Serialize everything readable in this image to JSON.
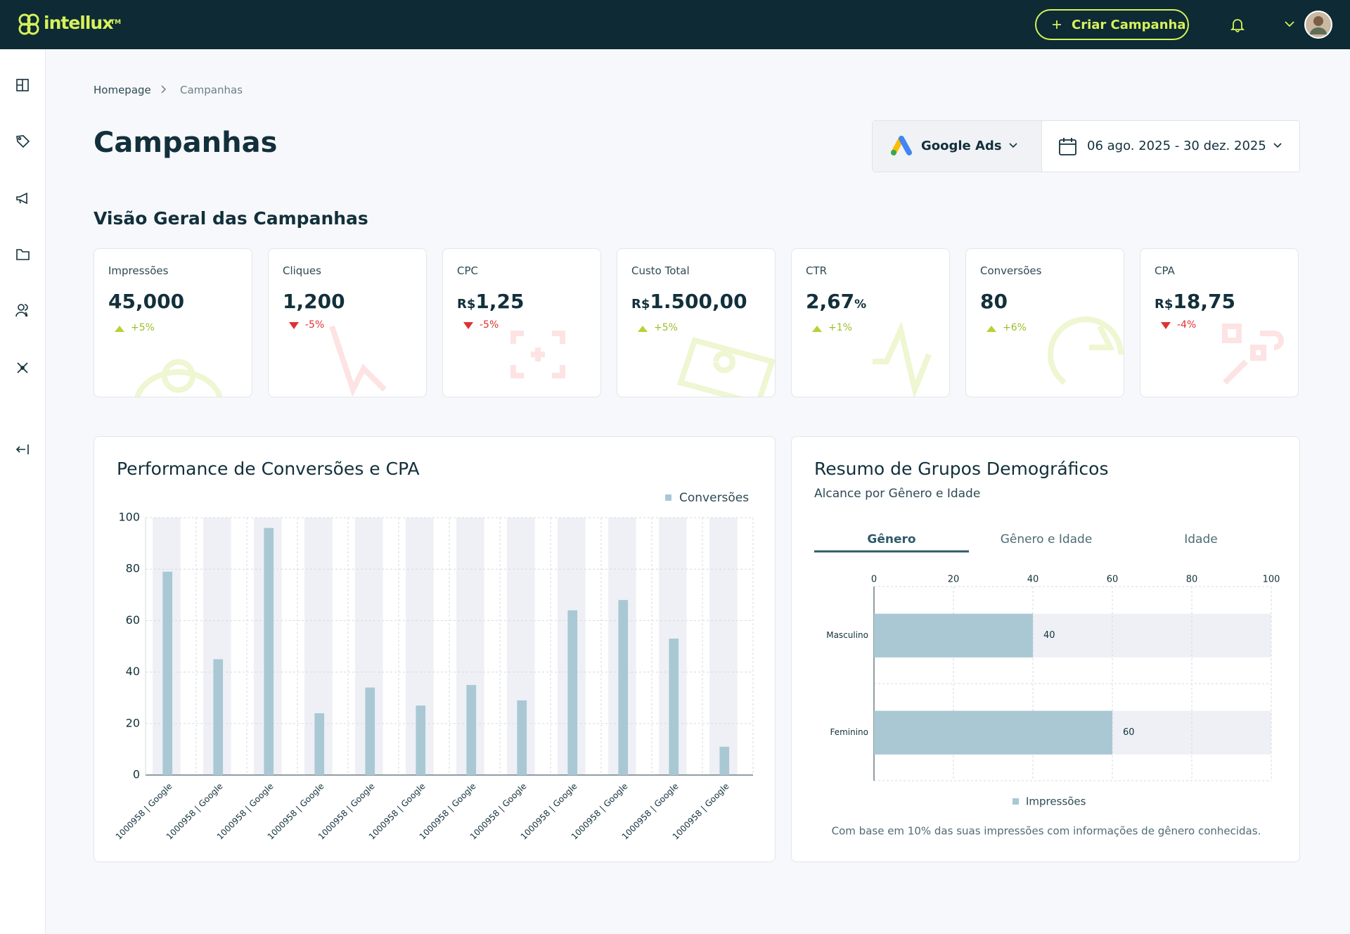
{
  "header": {
    "brand": "intellux",
    "trademark": "TM",
    "create_button": "Criar Campanha"
  },
  "breadcrumb": [
    "Homepage",
    "Campanhas"
  ],
  "page_title": "Campanhas",
  "filters": {
    "platform": "Google Ads",
    "date_range": "06 ago. 2025 - 30 dez. 2025"
  },
  "overview": {
    "title": "Visão Geral das Campanhas",
    "kpis": [
      {
        "label": "Impressões",
        "value": "45,000",
        "change": "+5%",
        "trend": "up"
      },
      {
        "label": "Cliques",
        "value": "1,200",
        "change": "-5%",
        "trend": "down"
      },
      {
        "label": "CPC",
        "prefix": "R$",
        "value": "1,25",
        "change": "-5%",
        "trend": "down"
      },
      {
        "label": "Custo Total",
        "prefix": "R$",
        "value": "1.500,00",
        "change": "+5%",
        "trend": "up"
      },
      {
        "label": "CTR",
        "value": "2,67",
        "suffix": "%",
        "change": "+1%",
        "trend": "up"
      },
      {
        "label": "Conversões",
        "value": "80",
        "change": "+6%",
        "trend": "up"
      },
      {
        "label": "CPA",
        "prefix": "R$",
        "value": "18,75",
        "change": "-4%",
        "trend": "down"
      }
    ]
  },
  "chart_data": [
    {
      "type": "bar",
      "title": "Performance de Conversões e CPA",
      "categories": [
        "1000958 | Google",
        "1000958 | Google",
        "1000958 | Google",
        "1000958 | Google",
        "1000958 | Google",
        "1000958 | Google",
        "1000958 | Google",
        "1000958 | Google",
        "1000958 | Google",
        "1000958 | Google",
        "1000958 | Google",
        "1000958 | Google"
      ],
      "series": [
        {
          "name": "Conversões",
          "color": "#a9c8d4",
          "values": [
            79,
            45,
            96,
            24,
            34,
            27,
            35,
            29,
            64,
            68,
            53,
            11
          ]
        }
      ],
      "ylim": [
        0,
        100
      ],
      "yticks": [
        0,
        20,
        40,
        60,
        80,
        100
      ],
      "grid": true,
      "legend": "top-right"
    },
    {
      "type": "barh",
      "title": "Resumo de Grupos Demográficos",
      "subtitle": "Alcance por Gênero e Idade",
      "tabs": [
        "Gênero",
        "Gênero e Idade",
        "Idade"
      ],
      "active_tab": 0,
      "categories": [
        "Masculino",
        "Feminino"
      ],
      "series": [
        {
          "name": "Impressões",
          "color": "#a9c8d4",
          "values": [
            40,
            60
          ]
        }
      ],
      "xlim": [
        0,
        100
      ],
      "xticks": [
        0,
        20,
        40,
        60,
        80,
        100
      ],
      "grid": true,
      "legend": "bottom",
      "note": "Com base em 10% das suas impressões com informações de gênero conhecidas."
    }
  ]
}
